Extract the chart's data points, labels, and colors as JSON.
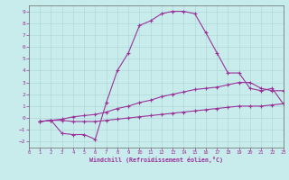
{
  "xlabel": "Windchill (Refroidissement éolien,°C)",
  "bg_color": "#c8ecec",
  "line_color": "#993399",
  "grid_color": "#b0d8d8",
  "xlim": [
    0,
    23
  ],
  "ylim": [
    -2.5,
    9.5
  ],
  "xticks": [
    0,
    1,
    2,
    3,
    4,
    5,
    6,
    7,
    8,
    9,
    10,
    11,
    12,
    13,
    14,
    15,
    16,
    17,
    18,
    19,
    20,
    21,
    22,
    23
  ],
  "yticks": [
    -2,
    -1,
    0,
    1,
    2,
    3,
    4,
    5,
    6,
    7,
    8,
    9
  ],
  "curve1_x": [
    1,
    2,
    3,
    4,
    5,
    6,
    7,
    8,
    9,
    10,
    11,
    12,
    13,
    14,
    15,
    16,
    17,
    18,
    19,
    20,
    21,
    22,
    23
  ],
  "curve1_y": [
    -0.3,
    -0.2,
    -1.3,
    -1.4,
    -1.4,
    -1.8,
    1.3,
    4.0,
    5.5,
    7.8,
    8.2,
    8.8,
    9.0,
    9.0,
    8.8,
    7.2,
    5.5,
    3.8,
    3.8,
    2.5,
    2.3,
    2.5,
    1.2
  ],
  "curve2_x": [
    1,
    2,
    3,
    4,
    5,
    6,
    7,
    8,
    9,
    10,
    11,
    12,
    13,
    14,
    15,
    16,
    17,
    18,
    19,
    20,
    21,
    22,
    23
  ],
  "curve2_y": [
    -0.3,
    -0.2,
    -0.1,
    0.1,
    0.2,
    0.3,
    0.5,
    0.8,
    1.0,
    1.3,
    1.5,
    1.8,
    2.0,
    2.2,
    2.4,
    2.5,
    2.6,
    2.8,
    3.0,
    3.0,
    2.5,
    2.3,
    2.3
  ],
  "curve3_x": [
    1,
    2,
    3,
    4,
    5,
    6,
    7,
    8,
    9,
    10,
    11,
    12,
    13,
    14,
    15,
    16,
    17,
    18,
    19,
    20,
    21,
    22,
    23
  ],
  "curve3_y": [
    -0.3,
    -0.2,
    -0.2,
    -0.3,
    -0.3,
    -0.3,
    -0.2,
    -0.1,
    0.0,
    0.1,
    0.2,
    0.3,
    0.4,
    0.5,
    0.6,
    0.7,
    0.8,
    0.9,
    1.0,
    1.0,
    1.0,
    1.1,
    1.2
  ]
}
